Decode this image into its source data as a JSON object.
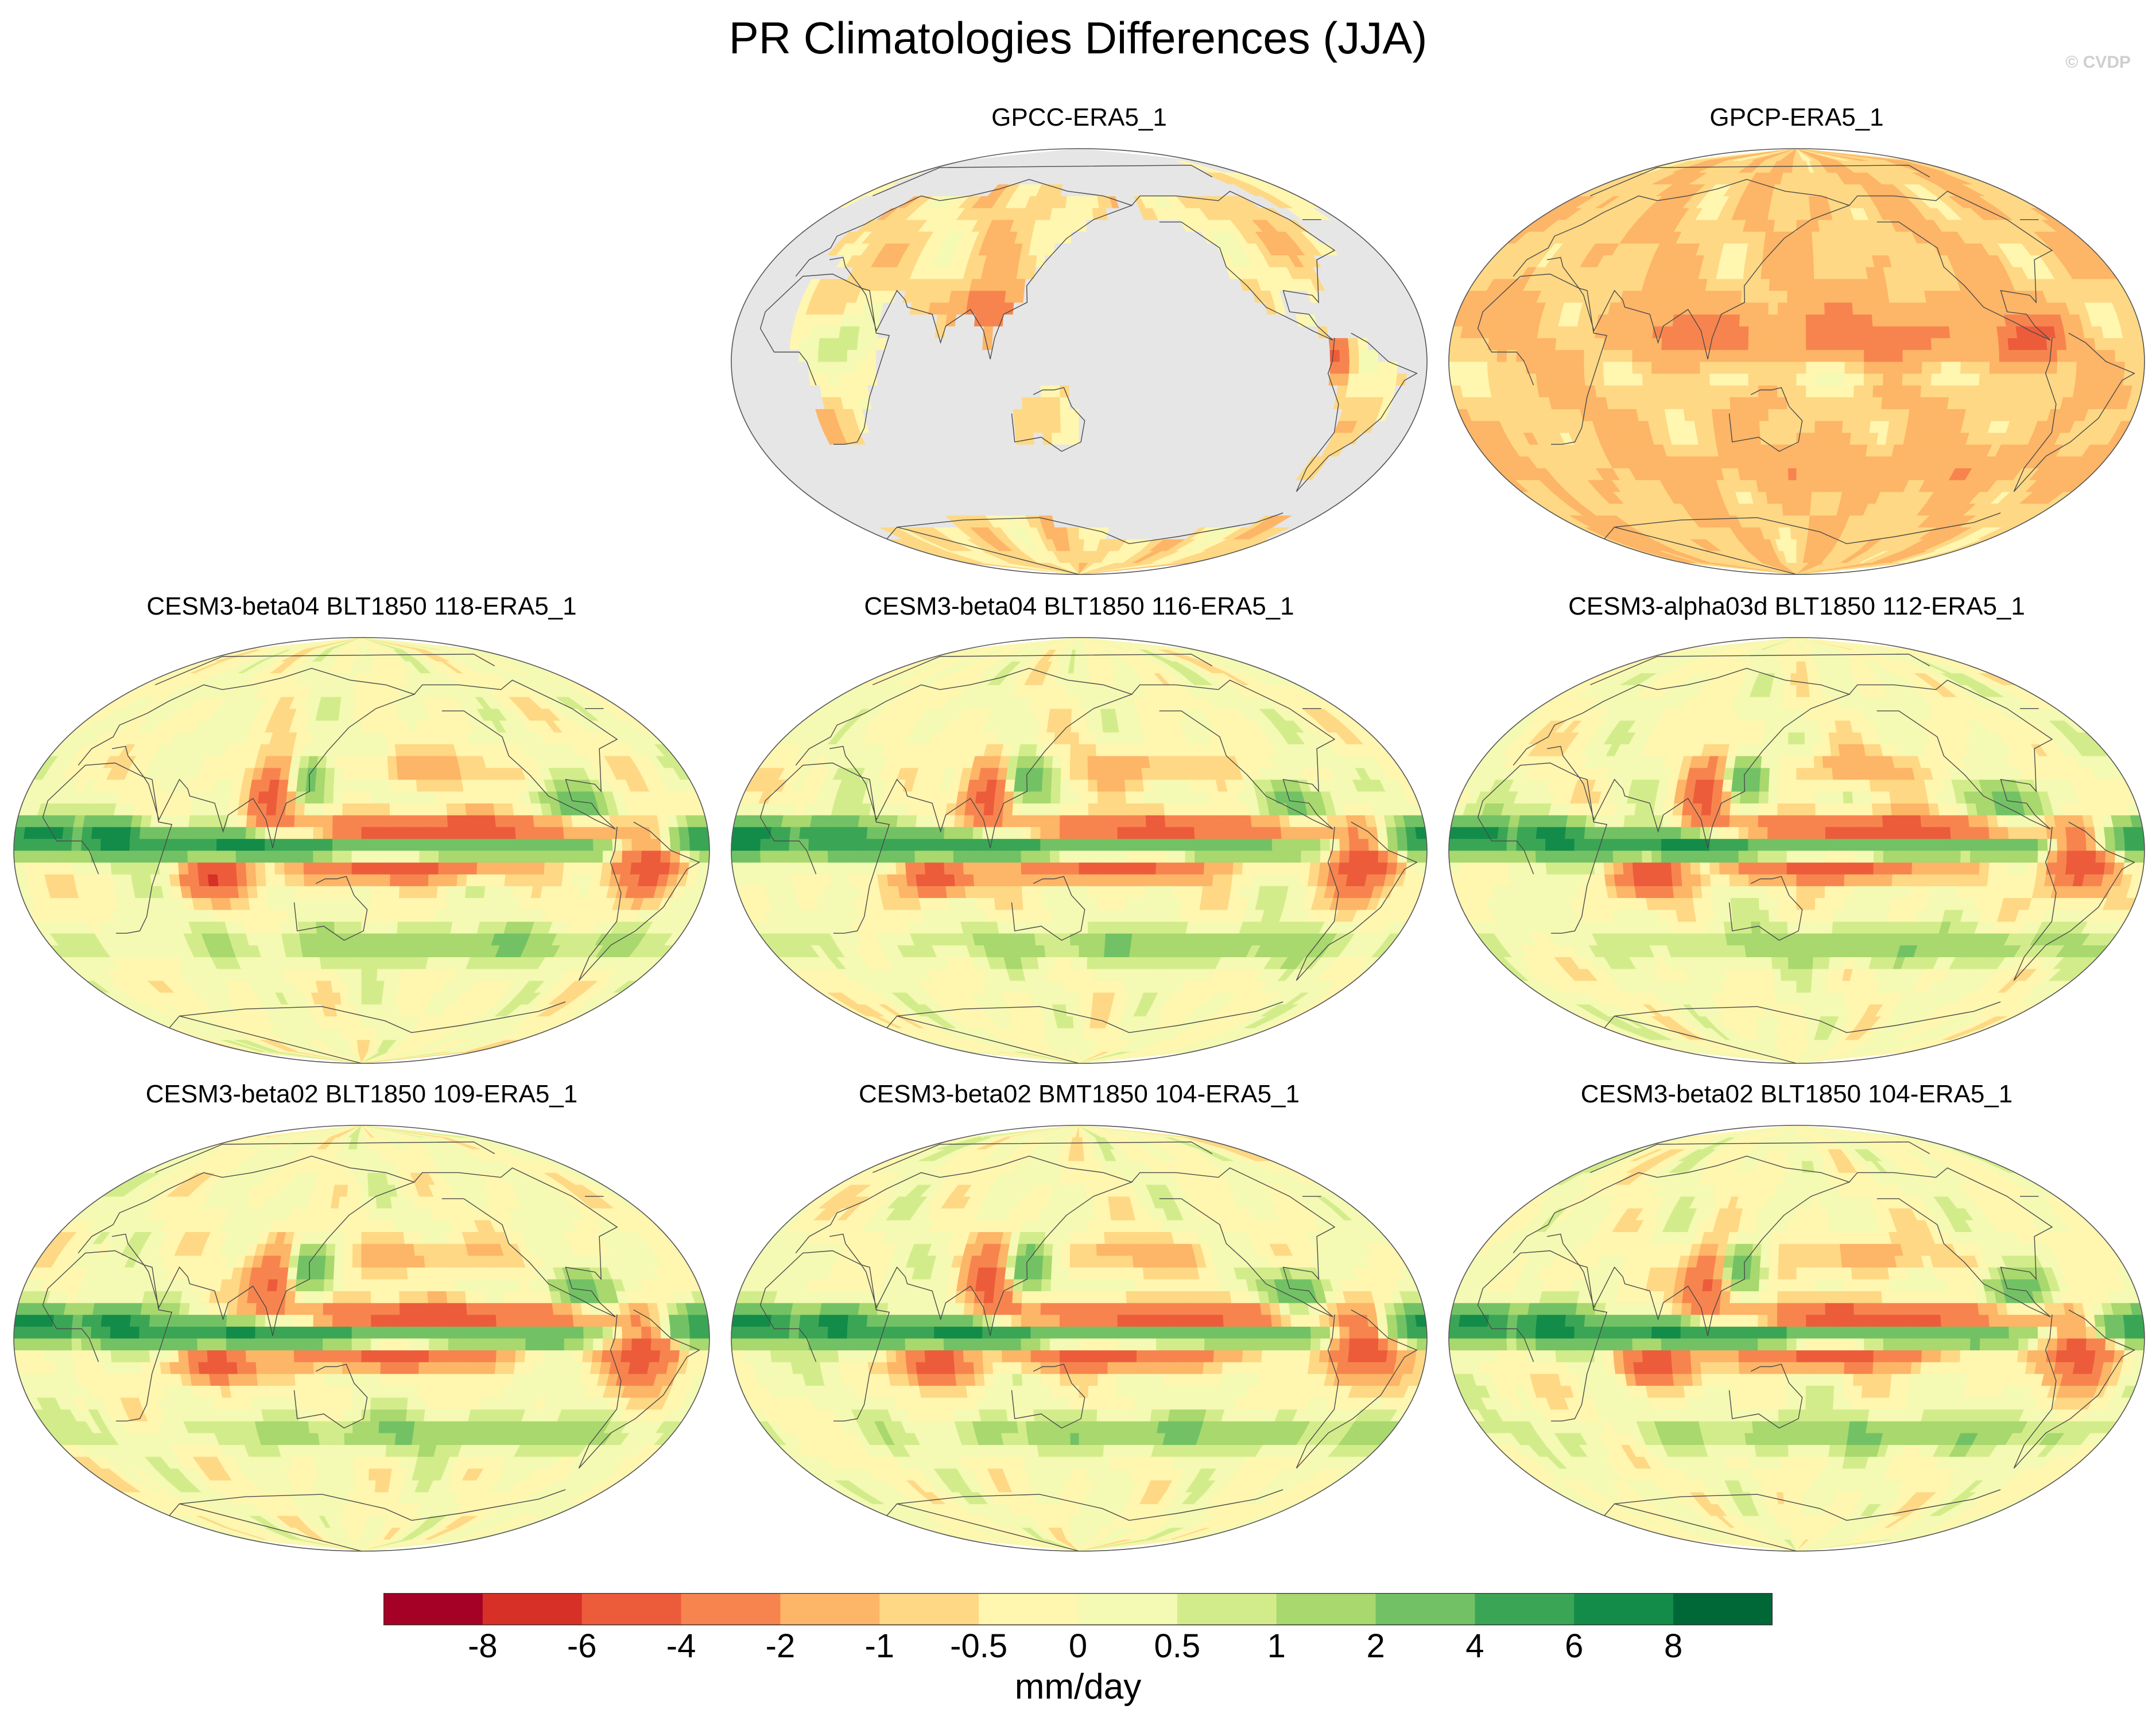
{
  "title": "PR Climatologies Differences (JJA)",
  "watermark": "© CVDP",
  "chart_data": {
    "type": "heatmap",
    "title": "PR Climatologies Differences (JJA)",
    "variable": "PR",
    "season": "JJA",
    "projection": "global map, Pacific-centered",
    "colorbar": {
      "units": "mm/day",
      "tick_labels": [
        "-8",
        "-6",
        "-4",
        "-2",
        "-1",
        "-0.5",
        "0",
        "0.5",
        "1",
        "2",
        "4",
        "6",
        "8"
      ],
      "levels": [
        -8,
        -6,
        -4,
        -2,
        -1,
        -0.5,
        0,
        0.5,
        1,
        2,
        4,
        6,
        8
      ],
      "colors": [
        "#a50026",
        "#d73027",
        "#ec5c3b",
        "#f7844e",
        "#fdb567",
        "#fed884",
        "#fff6b0",
        "#f4f9b3",
        "#d3ec8b",
        "#a8d86e",
        "#72c265",
        "#3aa655",
        "#138c4a",
        "#006837"
      ]
    },
    "panels": [
      {
        "id": "p1",
        "label": "GPCC-ERA5_1",
        "land_only": true
      },
      {
        "id": "p2",
        "label": "GPCP-ERA5_1",
        "land_only": false
      },
      {
        "id": "p3",
        "label": "CESM3-beta04 BLT1850 118-ERA5_1",
        "land_only": false
      },
      {
        "id": "p4",
        "label": "CESM3-beta04 BLT1850 116-ERA5_1",
        "land_only": false
      },
      {
        "id": "p5",
        "label": "CESM3-alpha03d BLT1850 112-ERA5_1",
        "land_only": false
      },
      {
        "id": "p6",
        "label": "CESM3-beta02 BLT1850 109-ERA5_1",
        "land_only": false
      },
      {
        "id": "p7",
        "label": "CESM3-beta02 BMT1850 104-ERA5_1",
        "land_only": false
      },
      {
        "id": "p8",
        "label": "CESM3-beta02 BLT1850 104-ERA5_1",
        "land_only": false
      }
    ]
  }
}
